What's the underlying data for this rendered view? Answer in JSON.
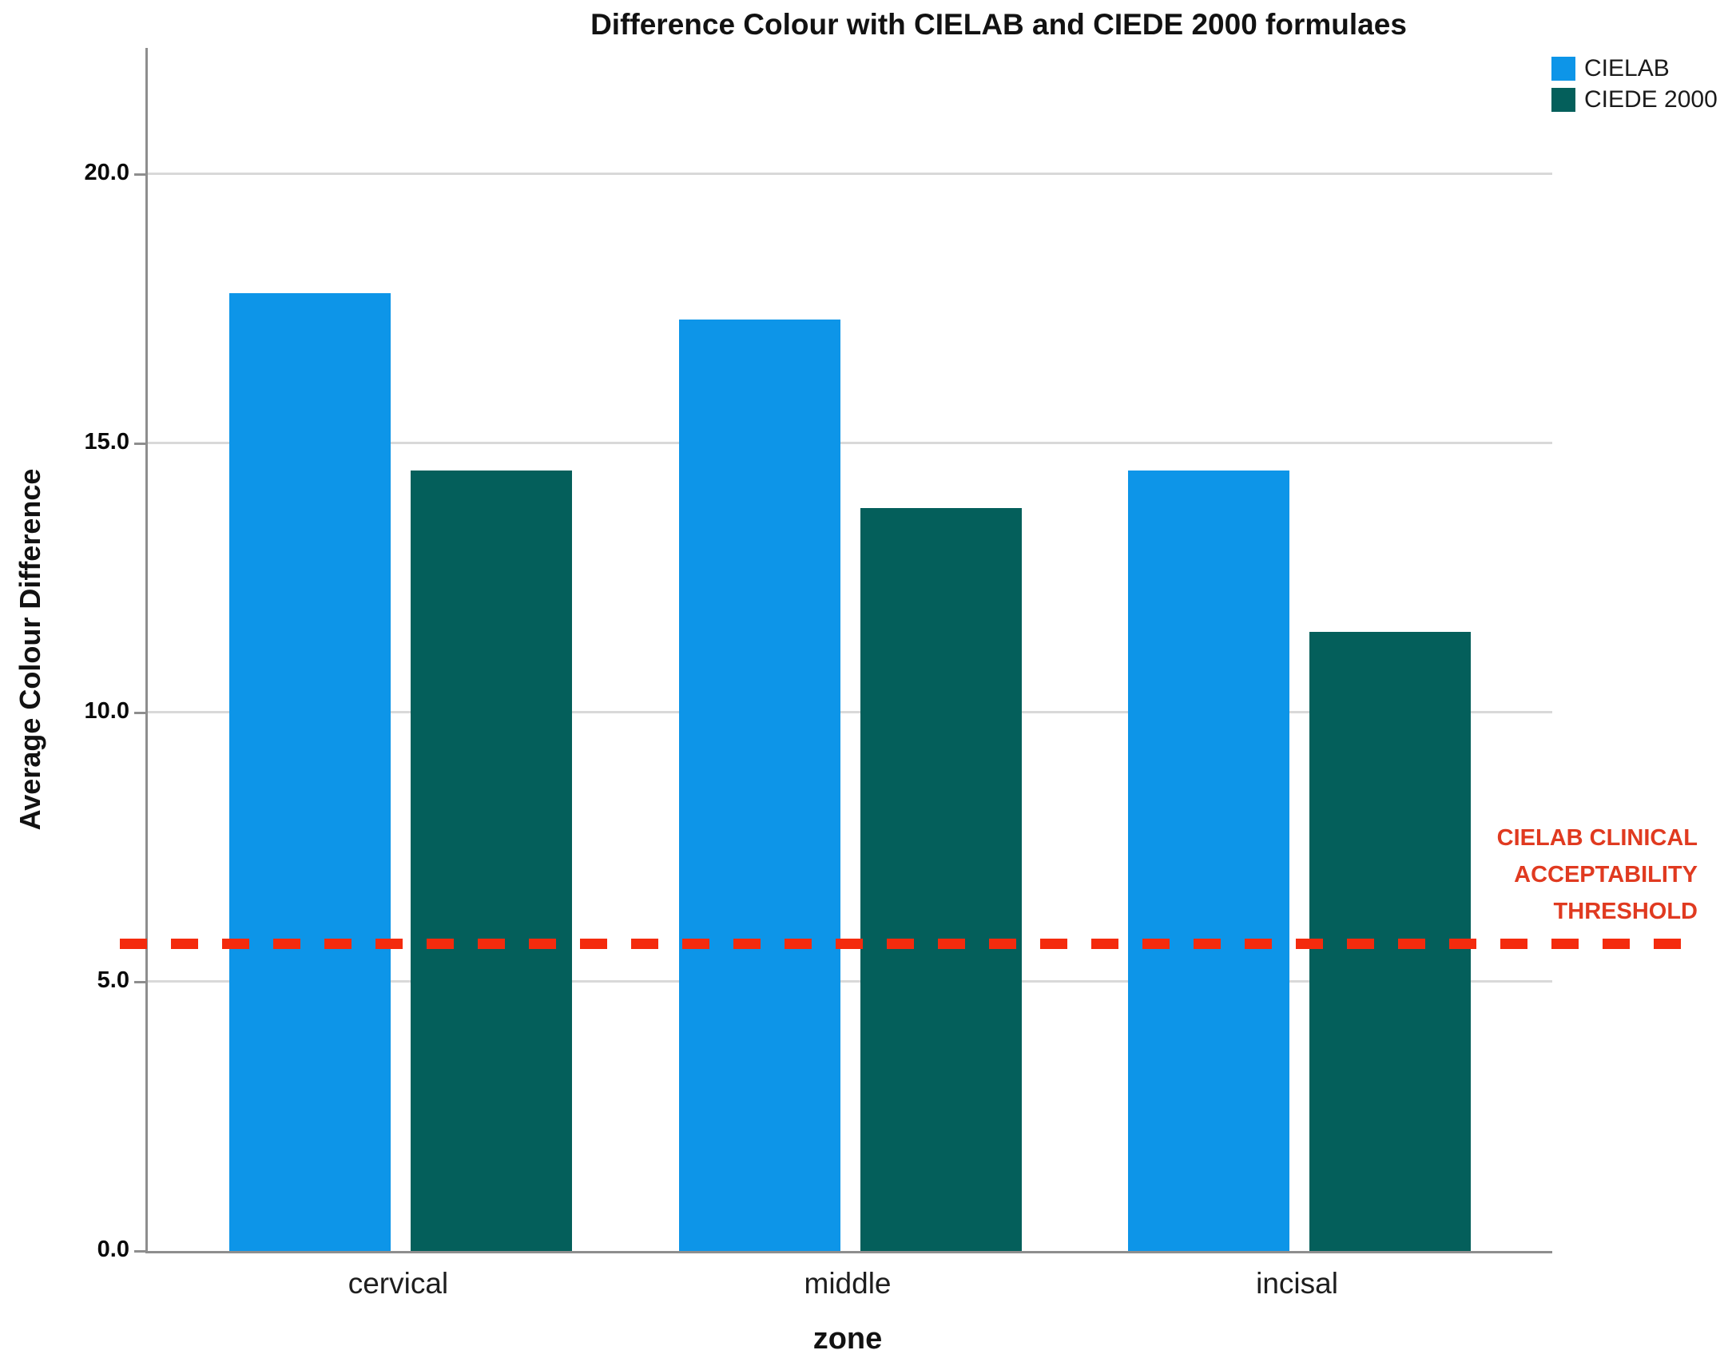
{
  "chart_data": {
    "type": "bar",
    "title": "Difference Colour with CIELAB and CIEDE 2000 formulaes",
    "xlabel": "zone",
    "ylabel": "Average Colour Difference",
    "categories": [
      "cervical",
      "middle",
      "incisal"
    ],
    "series": [
      {
        "name": "CIELAB",
        "color": "#0D95E8",
        "values": [
          17.8,
          17.3,
          14.5
        ]
      },
      {
        "name": "CIEDE 2000",
        "color": "#045F5B",
        "values": [
          14.5,
          13.8,
          11.5
        ]
      }
    ],
    "yticks": [
      {
        "label": "0.0",
        "value": 0
      },
      {
        "label": "5.0",
        "value": 5
      },
      {
        "label": "10.0",
        "value": 10
      },
      {
        "label": "15.0",
        "value": 15
      },
      {
        "label": "20.0",
        "value": 20
      }
    ],
    "ylim": [
      0,
      22.35
    ],
    "grid": "horizontal",
    "legend_position": "top-right",
    "threshold": {
      "value": 5.7,
      "style": "dashed",
      "line_color": "#F42B0D",
      "text_color": "#E03A20",
      "label_lines": [
        "CIELAB CLINICAL",
        "ACCEPTABILITY",
        "THRESHOLD"
      ]
    },
    "colors": {
      "gridline": "#D9D9D9",
      "axis": "#8E8E8E"
    }
  }
}
